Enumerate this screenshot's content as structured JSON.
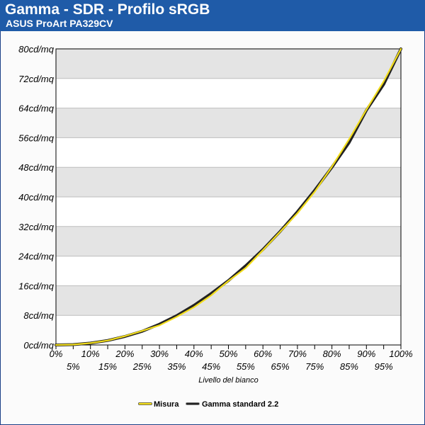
{
  "header": {
    "title": "Gamma - SDR - Profilo sRGB",
    "subtitle": "ASUS ProArt PA329CV"
  },
  "colors": {
    "header_bg": "#1f5ba8",
    "measured": "#f2dd1c",
    "reference": "#222222",
    "band": "#e4e4e4"
  },
  "chart_data": {
    "type": "line",
    "title": "Gamma - SDR - Profilo sRGB",
    "subtitle": "ASUS ProArt PA329CV",
    "xlabel": "Livello del bianco",
    "ylabel": "",
    "x": [
      0,
      5,
      10,
      15,
      20,
      25,
      30,
      35,
      40,
      45,
      50,
      55,
      60,
      65,
      70,
      75,
      80,
      85,
      90,
      95,
      100
    ],
    "x_tick_labels": [
      "0%",
      "5%",
      "10%",
      "15%",
      "20%",
      "25%",
      "30%",
      "35%",
      "40%",
      "45%",
      "50%",
      "55%",
      "60%",
      "65%",
      "70%",
      "75%",
      "80%",
      "85%",
      "90%",
      "95%",
      "100%"
    ],
    "y_ticks": [
      0,
      8,
      16,
      24,
      32,
      40,
      48,
      56,
      64,
      72,
      80
    ],
    "y_tick_labels": [
      "0cd/mq",
      "8cd/mq",
      "16cd/mq",
      "24cd/mq",
      "32cd/mq",
      "40cd/mq",
      "48cd/mq",
      "56cd/mq",
      "64cd/mq",
      "72cd/mq",
      "80cd/mq"
    ],
    "xlim": [
      0,
      100
    ],
    "ylim": [
      0,
      80
    ],
    "grid": "horizontal-bands",
    "legend_position": "bottom-center",
    "series": [
      {
        "name": "Misura",
        "color": "#f2dd1c",
        "values": [
          0,
          0.1,
          0.5,
          1.2,
          2.4,
          3.8,
          5.3,
          7.6,
          10.2,
          13.4,
          17.3,
          20.8,
          25.6,
          30.6,
          35.6,
          41.4,
          48.2,
          55.6,
          63.6,
          71.2,
          80
        ]
      },
      {
        "name": "Gamma standard 2.2",
        "color": "#222222",
        "values": [
          0,
          0.1,
          0.5,
          1.2,
          2.3,
          3.7,
          5.6,
          7.9,
          10.7,
          13.9,
          17.4,
          21.4,
          25.8,
          30.7,
          36.0,
          41.8,
          48.0,
          54.7,
          63.4,
          70.4,
          80
        ]
      }
    ]
  }
}
